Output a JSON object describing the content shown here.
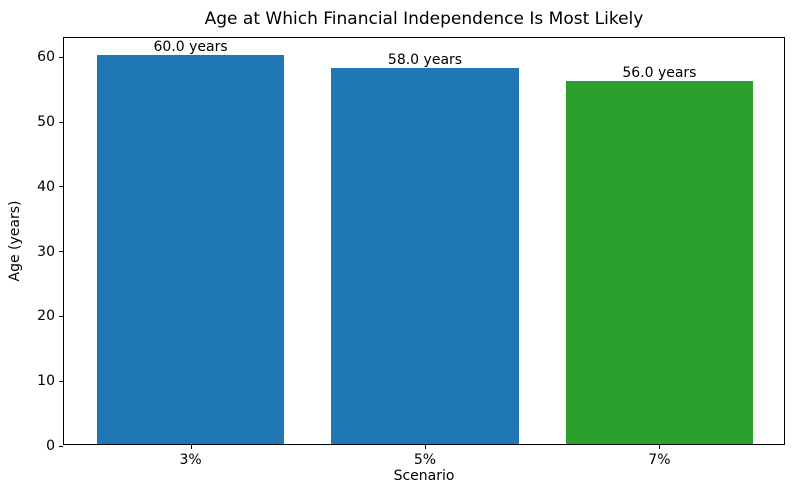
{
  "chart_data": {
    "type": "bar",
    "title": "Age at Which Financial Independence Is Most Likely",
    "xlabel": "Scenario",
    "ylabel": "Age (years)",
    "categories": [
      "3%",
      "5%",
      "7%"
    ],
    "values": [
      60.0,
      58.0,
      56.0
    ],
    "bar_labels": [
      "60.0 years",
      "58.0 years",
      "56.0 years"
    ],
    "bar_colors": [
      "#1f77b4",
      "#1f77b4",
      "#2ca02c"
    ],
    "ylim": [
      0,
      63
    ],
    "yticks": [
      0,
      10,
      20,
      30,
      40,
      50,
      60
    ],
    "bar_width_fraction": 0.8,
    "grid": false,
    "legend": "none",
    "background_color": "#ffffff",
    "spine_color": "#000000",
    "text_color": "#000000"
  }
}
